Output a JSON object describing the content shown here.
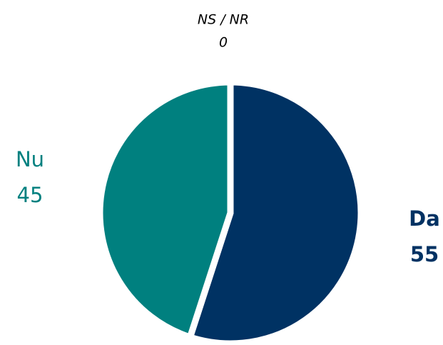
{
  "chart_data": {
    "type": "pie",
    "categories": [
      "Da",
      "Nu",
      "NS / NR"
    ],
    "values": [
      55,
      45,
      0
    ],
    "colors": [
      "#003263",
      "#00807f",
      "#7f7f7f"
    ]
  }
}
